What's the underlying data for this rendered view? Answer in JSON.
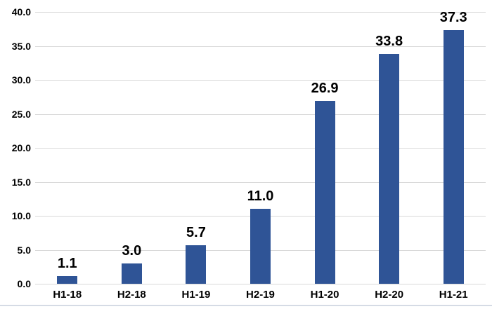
{
  "chart_data": {
    "type": "bar",
    "title": "",
    "xlabel": "",
    "ylabel": "",
    "categories": [
      "H1-18",
      "H2-18",
      "H1-19",
      "H2-19",
      "H1-20",
      "H2-20",
      "H1-21"
    ],
    "values": [
      1.1,
      3.0,
      5.7,
      11.0,
      26.9,
      33.8,
      37.3
    ],
    "data_labels": [
      "1.1",
      "3.0",
      "5.7",
      "11.0",
      "26.9",
      "33.8",
      "37.3"
    ],
    "ylim": [
      0,
      40
    ],
    "yticks": [
      "0.0",
      "5.0",
      "10.0",
      "15.0",
      "20.0",
      "25.0",
      "30.0",
      "35.0",
      "40.0"
    ],
    "grid": "horizontal",
    "legend": "none",
    "colors": {
      "bar": "#2F5496",
      "gridline": "#D9D9D9",
      "text": "#000000",
      "chart_border": "#D5DBE5",
      "background": "#FFFFFF"
    }
  }
}
